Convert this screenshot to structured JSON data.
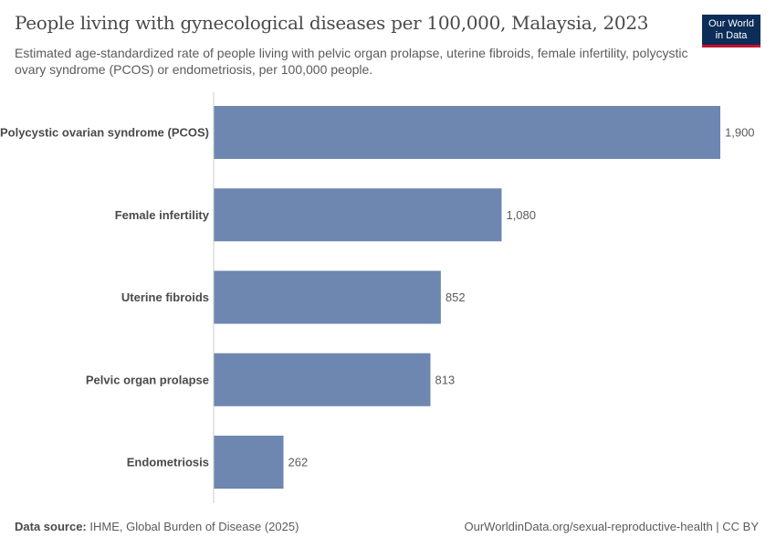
{
  "header": {
    "title": "People living with gynecological diseases per 100,000, Malaysia, 2023",
    "subtitle": "Estimated age-standardized rate of people living with pelvic organ prolapse, uterine fibroids, female infertility, polycystic ovary syndrome (PCOS) or endometriosis, per 100,000 people."
  },
  "logo": {
    "line1": "Our World",
    "line2": "in Data"
  },
  "footer": {
    "source_label": "Data source:",
    "source_text": "IHME, Global Burden of Disease (2025)",
    "url": "OurWorldinData.org/sexual-reproductive-health | CC BY"
  },
  "colors": {
    "bar": "#6d87b0",
    "axis": "#cccccc"
  },
  "chart_data": {
    "type": "bar",
    "orientation": "horizontal",
    "categories": [
      "Polycystic ovarian syndrome (PCOS)",
      "Female infertility",
      "Uterine fibroids",
      "Pelvic organ prolapse",
      "Endometriosis"
    ],
    "values": [
      1900,
      1080,
      852,
      813,
      262
    ],
    "value_labels": [
      "1,900",
      "1,080",
      "852",
      "813",
      "262"
    ],
    "xlim": [
      0,
      1900
    ],
    "grid": false
  }
}
